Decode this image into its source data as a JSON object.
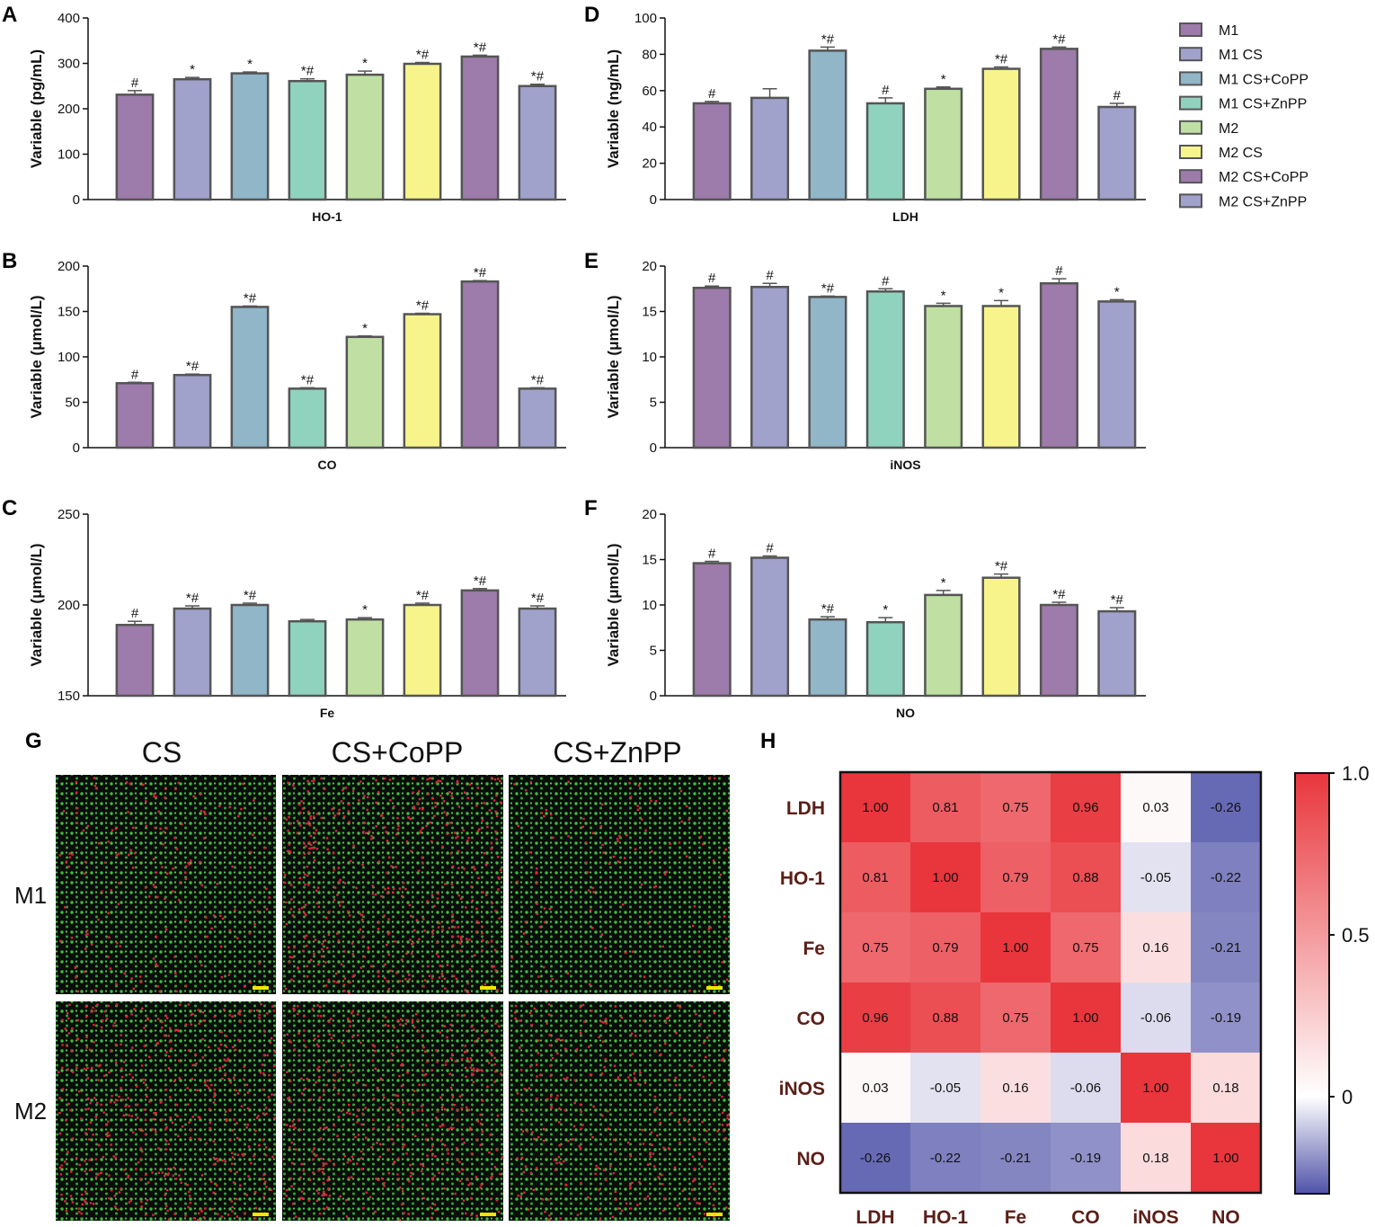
{
  "legend": {
    "groups": [
      "M1",
      "M1 CS",
      "M1 CS+CoPP",
      "M1 CS+ZnPP",
      "M2",
      "M2 CS",
      "M2 CS+CoPP",
      "M2 CS+ZnPP"
    ],
    "colors": [
      "#9d7baa",
      "#a0a2cc",
      "#90b6c8",
      "#8fd3bf",
      "#bfe0a2",
      "#f8f48c",
      "#9d7baa",
      "#a0a2cc"
    ]
  },
  "chart_data": [
    {
      "type": "bar",
      "panel": "A",
      "xlabel": "HO-1",
      "ylabel": "Variable (pg/mL)",
      "ylim": [
        0,
        400
      ],
      "yticks": [
        "0",
        "100",
        "200",
        "300",
        "400"
      ],
      "ytick_values": [
        0,
        100,
        200,
        300,
        400
      ],
      "values": [
        231,
        265,
        278,
        261,
        275,
        299,
        315,
        250
      ],
      "errors": [
        9,
        4,
        3,
        5,
        8,
        3,
        3,
        4
      ],
      "annotations": [
        "#",
        "*",
        "*",
        "*#",
        "*",
        "*#",
        "*#",
        "*#"
      ]
    },
    {
      "type": "bar",
      "panel": "B",
      "xlabel": "CO",
      "ylabel": "Variable (μmol/L)",
      "ylim": [
        0,
        200
      ],
      "yticks": [
        "0",
        "50",
        "100",
        "150",
        "200"
      ],
      "ytick_values": [
        0,
        50,
        100,
        150,
        200
      ],
      "values": [
        71,
        80,
        155,
        65,
        122,
        147,
        183,
        65
      ],
      "errors": [
        1,
        1,
        1,
        1,
        1,
        1,
        1,
        1
      ],
      "annotations": [
        "#",
        "*#",
        "*#",
        "*#",
        "*",
        "*#",
        "*#",
        "*#"
      ]
    },
    {
      "type": "bar",
      "panel": "C",
      "xlabel": "Fe",
      "ylabel": "Variable (μmol/L)",
      "ylim": [
        150,
        250
      ],
      "yticks": [
        "150",
        "200",
        "250"
      ],
      "ytick_values": [
        150,
        200,
        250
      ],
      "values": [
        189,
        198,
        200,
        191,
        192,
        200,
        208,
        198
      ],
      "errors": [
        2,
        1.5,
        1,
        1,
        1,
        1,
        1,
        1.5
      ],
      "annotations": [
        "#",
        "*#",
        "*#",
        "",
        "*",
        "*#",
        "*#",
        "*#"
      ]
    },
    {
      "type": "bar",
      "panel": "D",
      "xlabel": "LDH",
      "ylabel": "Variable (ng/mL)",
      "ylim": [
        0,
        100
      ],
      "yticks": [
        "0",
        "20",
        "40",
        "60",
        "80",
        "100"
      ],
      "ytick_values": [
        0,
        20,
        40,
        60,
        80,
        100
      ],
      "values": [
        53,
        56,
        82,
        53,
        61,
        72,
        83,
        51
      ],
      "errors": [
        1,
        5,
        2,
        3,
        1,
        1,
        1,
        2
      ],
      "annotations": [
        "#",
        "",
        "*#",
        "#",
        "*",
        "*#",
        "*#",
        "#"
      ]
    },
    {
      "type": "bar",
      "panel": "E",
      "xlabel": "iNOS",
      "ylabel": "Variable (μmol/L)",
      "ylim": [
        0,
        20
      ],
      "yticks": [
        "0",
        "5",
        "10",
        "15",
        "20"
      ],
      "ytick_values": [
        0,
        5,
        10,
        15,
        20
      ],
      "values": [
        17.6,
        17.7,
        16.6,
        17.2,
        15.6,
        15.6,
        18.1,
        16.1
      ],
      "errors": [
        0.2,
        0.4,
        0.1,
        0.3,
        0.3,
        0.6,
        0.5,
        0.2
      ],
      "annotations": [
        "#",
        "#",
        "*#",
        "#",
        "*",
        "*",
        "#",
        "*"
      ]
    },
    {
      "type": "bar",
      "panel": "F",
      "xlabel": "NO",
      "ylabel": "Variable (μmol/L)",
      "ylim": [
        0,
        20
      ],
      "yticks": [
        "0",
        "5",
        "10",
        "15",
        "20"
      ],
      "ytick_values": [
        0,
        5,
        10,
        15,
        20
      ],
      "values": [
        14.6,
        15.2,
        8.4,
        8.1,
        11.1,
        13.0,
        10.0,
        9.3
      ],
      "errors": [
        0.2,
        0.2,
        0.3,
        0.5,
        0.5,
        0.4,
        0.3,
        0.4
      ],
      "annotations": [
        "#",
        "#",
        "*#",
        "*",
        "*",
        "*#",
        "*#",
        "*#"
      ]
    },
    {
      "type": "heatmap",
      "panel": "H",
      "labels": [
        "LDH",
        "HO-1",
        "Fe",
        "CO",
        "iNOS",
        "NO"
      ],
      "matrix": [
        [
          1.0,
          0.81,
          0.75,
          0.96,
          0.03,
          -0.26
        ],
        [
          0.81,
          1.0,
          0.79,
          0.88,
          -0.05,
          -0.22
        ],
        [
          0.75,
          0.79,
          1.0,
          0.75,
          0.16,
          -0.21
        ],
        [
          0.96,
          0.88,
          0.75,
          1.0,
          -0.06,
          -0.19
        ],
        [
          0.03,
          -0.05,
          0.16,
          -0.06,
          1.0,
          0.18
        ],
        [
          -0.26,
          -0.22,
          -0.21,
          -0.19,
          0.18,
          1.0
        ]
      ],
      "cell_text": [
        [
          "1.00",
          "0.81",
          "0.75",
          "0.96",
          "0.03",
          "-0.26"
        ],
        [
          "0.81",
          "1.00",
          "0.79",
          "0.88",
          "-0.05",
          "-0.22"
        ],
        [
          "0.75",
          "0.79",
          "1.00",
          "0.75",
          "0.16",
          "-0.21"
        ],
        [
          "0.96",
          "0.88",
          "0.75",
          "1.00",
          "-0.06",
          "-0.19"
        ],
        [
          "0.03",
          "-0.05",
          "0.16",
          "-0.06",
          "1.00",
          "0.18"
        ],
        [
          "-0.26",
          "-0.22",
          "-0.21",
          "-0.19",
          "0.18",
          "1.00"
        ]
      ],
      "colorbar": {
        "min": -0.3,
        "max": 1.0,
        "ticks": [
          "1.0",
          "0.5",
          "0"
        ],
        "tick_values": [
          1.0,
          0.5,
          0.0
        ],
        "colors": {
          "high": "#e8363c",
          "mid": "#ffffff",
          "low": "#4f52a8"
        }
      }
    }
  ],
  "panel_letters": [
    "A",
    "B",
    "C",
    "D",
    "E",
    "F",
    "G",
    "H"
  ],
  "image_panel": {
    "column_titles": [
      "CS",
      "CS+CoPP",
      "CS+ZnPP"
    ],
    "row_titles": [
      "M1",
      "M2"
    ],
    "red_fraction": [
      [
        0.18,
        0.45,
        0.12
      ],
      [
        0.48,
        0.45,
        0.28
      ]
    ],
    "colors": {
      "live": "#3cc03c",
      "dead": "#e0203a",
      "background": "#0a0d0a",
      "scalebar": "#f2e600"
    }
  }
}
